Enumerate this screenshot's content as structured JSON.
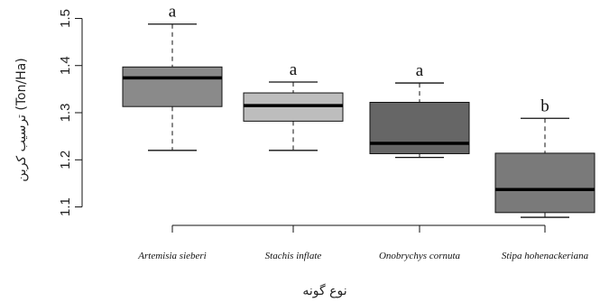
{
  "chart_data": {
    "type": "box",
    "ylabel": "ترسیب کربن (Ton/Ha)",
    "xlabel": "نوع گونه",
    "ylim": [
      1.08,
      1.52
    ],
    "yticks": [
      "1.1",
      "1.2",
      "1.3",
      "1.4",
      "1.5"
    ],
    "categories": [
      "Artemisia sieberi",
      "Stachis inflate",
      "Onobrychys cornuta",
      "Stipa hohenackeriana"
    ],
    "boxes": [
      {
        "min": 1.22,
        "q1": 1.313,
        "median": 1.374,
        "q3": 1.397,
        "max": 1.488,
        "significance": "a",
        "color": "#8a8a8a"
      },
      {
        "min": 1.22,
        "q1": 1.282,
        "median": 1.315,
        "q3": 1.342,
        "max": 1.365,
        "significance": "a",
        "color": "#bdbdbd"
      },
      {
        "min": 1.205,
        "q1": 1.213,
        "median": 1.235,
        "q3": 1.322,
        "max": 1.363,
        "significance": "a",
        "color": "#666666"
      },
      {
        "min": 1.078,
        "q1": 1.088,
        "median": 1.137,
        "q3": 1.214,
        "max": 1.288,
        "significance": "b",
        "color": "#7a7a7a"
      }
    ]
  }
}
